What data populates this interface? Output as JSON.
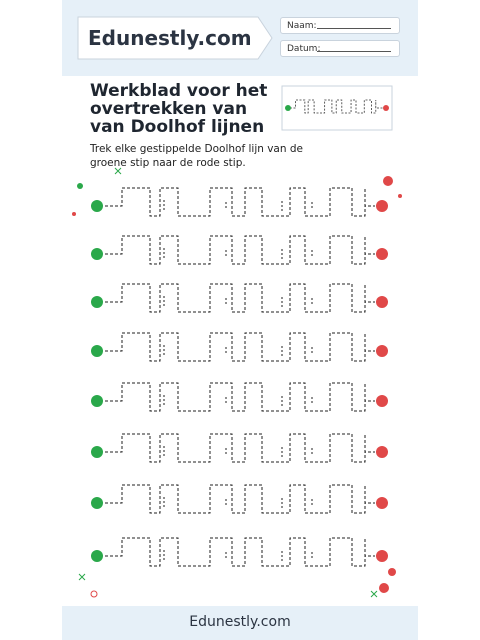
{
  "header": {
    "brand": "Edunestly.com",
    "name_label": "Naam:",
    "date_label": "Datum:"
  },
  "title_lines": [
    "Werkblad voor het",
    "overtrekken van",
    "van Doolhof lijnen"
  ],
  "instruction_lines": [
    "Trek elke gestippelde Doolhof lijn van de",
    "groene stip naar de rode stip."
  ],
  "footer": {
    "brand": "Edunestly.com"
  }
}
